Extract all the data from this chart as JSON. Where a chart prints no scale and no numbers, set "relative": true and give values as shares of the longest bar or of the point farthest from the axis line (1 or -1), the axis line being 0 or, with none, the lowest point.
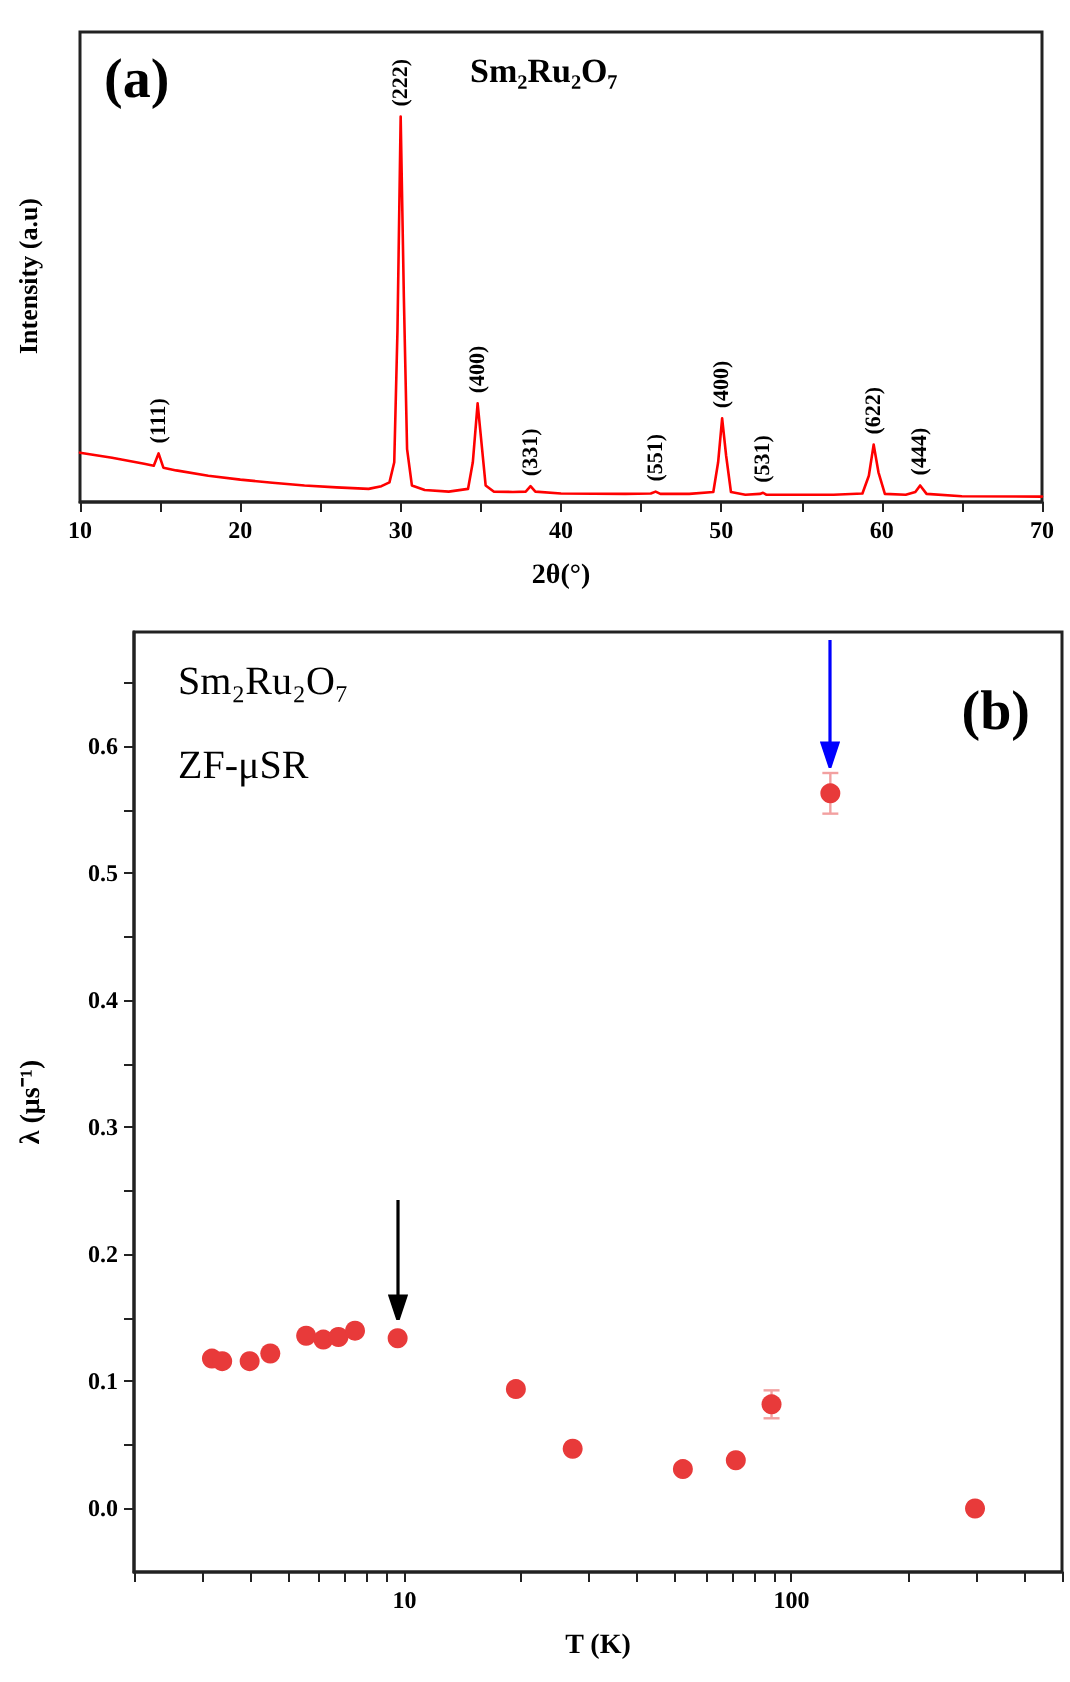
{
  "chart_data": [
    {
      "type": "line",
      "title": "Sm₂Ru₂O₇",
      "xlabel": "2θ(°)",
      "ylabel": "Intensity (a.u)",
      "relative": true,
      "xlim": [
        10,
        70
      ],
      "xticks": [
        10,
        {
          "value": 15,
          "label": null
        },
        20,
        {
          "value": 25,
          "label": null
        },
        30,
        {
          "value": 35,
          "label": null
        },
        40,
        {
          "value": 45,
          "label": null
        },
        50,
        {
          "value": 55,
          "label": null
        },
        60,
        {
          "value": 65,
          "label": null
        },
        70
      ],
      "series": [
        {
          "color": "#ff0000",
          "x": [
            10,
            12,
            14,
            14.6,
            14.9,
            15.2,
            16,
            18,
            20,
            22,
            24,
            26,
            28,
            28.8,
            29.3,
            29.6,
            29.8,
            30.0,
            30.2,
            30.4,
            30.7,
            31.5,
            33,
            34.2,
            34.5,
            34.8,
            35.0,
            35.3,
            35.8,
            37,
            37.8,
            38.1,
            38.4,
            40,
            44,
            45.6,
            45.9,
            46.2,
            48,
            49.5,
            49.8,
            50.05,
            50.3,
            50.6,
            51.5,
            52.4,
            52.6,
            52.8,
            55,
            57,
            58.8,
            59.2,
            59.5,
            59.8,
            60.2,
            61.5,
            62.1,
            62.4,
            62.8,
            65,
            70
          ],
          "values": [
            0.128,
            0.115,
            0.099,
            0.094,
            0.126,
            0.089,
            0.082,
            0.068,
            0.058,
            0.05,
            0.043,
            0.038,
            0.034,
            0.041,
            0.051,
            0.103,
            0.444,
            1,
            0.53,
            0.137,
            0.043,
            0.031,
            0.027,
            0.034,
            0.103,
            0.256,
            0.171,
            0.043,
            0.027,
            0.026,
            0.027,
            0.041,
            0.027,
            0.022,
            0.021,
            0.022,
            0.027,
            0.021,
            0.021,
            0.026,
            0.103,
            0.217,
            0.12,
            0.026,
            0.019,
            0.021,
            0.024,
            0.019,
            0.019,
            0.019,
            0.022,
            0.068,
            0.149,
            0.077,
            0.021,
            0.019,
            0.026,
            0.043,
            0.021,
            0.015,
            0.014
          ]
        }
      ],
      "annotations": [
        "(a)",
        {
          "text": "(111)",
          "x": 14.9,
          "y": 0.126
        },
        {
          "text": "(222)",
          "x": 30.0,
          "y": 1
        },
        {
          "text": "(400)",
          "x": 34.8,
          "y": 0.256
        },
        {
          "text": "(331)",
          "x": 38.1,
          "y": 0.041
        },
        {
          "text": "(551)",
          "x": 45.9,
          "y": 0.027
        },
        {
          "text": "(400)",
          "x": 50.05,
          "y": 0.217
        },
        {
          "text": "(531)",
          "x": 52.6,
          "y": 0.024
        },
        {
          "text": "(622)",
          "x": 59.5,
          "y": 0.149
        },
        {
          "text": "(444)",
          "x": 62.4,
          "y": 0.043
        }
      ],
      "grid": false,
      "marker": "none",
      "line_style": "solid"
    },
    {
      "type": "scatter",
      "title": "Sm₂Ru₂O₇",
      "subtitle": "ZF-μSR",
      "xlabel": "T (K)",
      "ylabel": "λ (μs⁻¹)",
      "log": "x",
      "xlim": [
        2,
        500
      ],
      "xticks": [
        {
          "value": 2,
          "label": null
        },
        {
          "value": 3,
          "label": null
        },
        {
          "value": 4,
          "label": null
        },
        {
          "value": 5,
          "label": null
        },
        {
          "value": 6,
          "label": null
        },
        {
          "value": 7,
          "label": null
        },
        {
          "value": 8,
          "label": null
        },
        {
          "value": 9,
          "label": null
        },
        10,
        {
          "value": 20,
          "label": null
        },
        {
          "value": 30,
          "label": null
        },
        {
          "value": 40,
          "label": null
        },
        {
          "value": 50,
          "label": null
        },
        {
          "value": 60,
          "label": null
        },
        {
          "value": 70,
          "label": null
        },
        {
          "value": 80,
          "label": null
        },
        {
          "value": 90,
          "label": null
        },
        100,
        {
          "value": 200,
          "label": null
        },
        {
          "value": 300,
          "label": null
        },
        {
          "value": 400,
          "label": null
        },
        {
          "value": 500,
          "label": null
        }
      ],
      "ylim": [
        -0.05,
        0.69
      ],
      "yticks": [
        {
          "value": 0,
          "label": "0.0"
        },
        {
          "value": 0.05,
          "label": null
        },
        0.1,
        {
          "value": 0.15,
          "label": null
        },
        0.2,
        {
          "value": 0.25,
          "label": null
        },
        0.3,
        {
          "value": 0.35,
          "label": null
        },
        0.4,
        {
          "value": 0.45,
          "label": null
        },
        0.5,
        {
          "value": 0.55,
          "label": null
        },
        0.6,
        {
          "value": 0.65,
          "label": null
        }
      ],
      "x": [
        3.18,
        3.38,
        3.98,
        4.5,
        5.57,
        6.17,
        6.75,
        7.45,
        9.6,
        19.4,
        27.2,
        52.4,
        71.8,
        88.8,
        126,
        298
      ],
      "series": [
        {
          "color": "#e83a3a",
          "values": [
            0.118,
            0.116,
            0.116,
            0.122,
            0.136,
            0.133,
            0.135,
            0.14,
            0.134,
            0.094,
            0.047,
            0.031,
            0.038,
            0.082,
            0.563,
            0.0
          ],
          "errors": [
            null,
            null,
            null,
            null,
            null,
            null,
            null,
            null,
            null,
            null,
            null,
            null,
            null,
            0.011,
            0.016,
            null
          ]
        }
      ],
      "annotations": [
        "(b)"
      ],
      "grid": false,
      "marker": "circle"
    }
  ]
}
